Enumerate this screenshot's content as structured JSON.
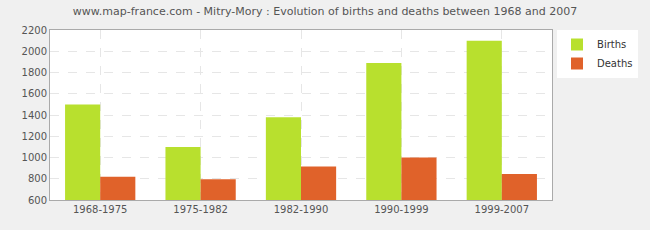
{
  "chart_data": {
    "type": "bar",
    "title": "www.map-france.com - Mitry-Mory : Evolution of births and deaths between 1968 and 2007",
    "categories": [
      "1968-1975",
      "1975-1982",
      "1982-1990",
      "1990-1999",
      "1999-2007"
    ],
    "series": [
      {
        "name": "Births",
        "color": "#b8e02e",
        "values": [
          1500,
          1100,
          1380,
          1890,
          2100
        ]
      },
      {
        "name": "Deaths",
        "color": "#e0622a",
        "values": [
          820,
          795,
          915,
          1000,
          845
        ]
      }
    ],
    "ylim": [
      600,
      2200
    ],
    "yticks": [
      600,
      800,
      1000,
      1200,
      1400,
      1600,
      1800,
      2000,
      2200
    ],
    "grid": true,
    "legend": "top-right"
  }
}
